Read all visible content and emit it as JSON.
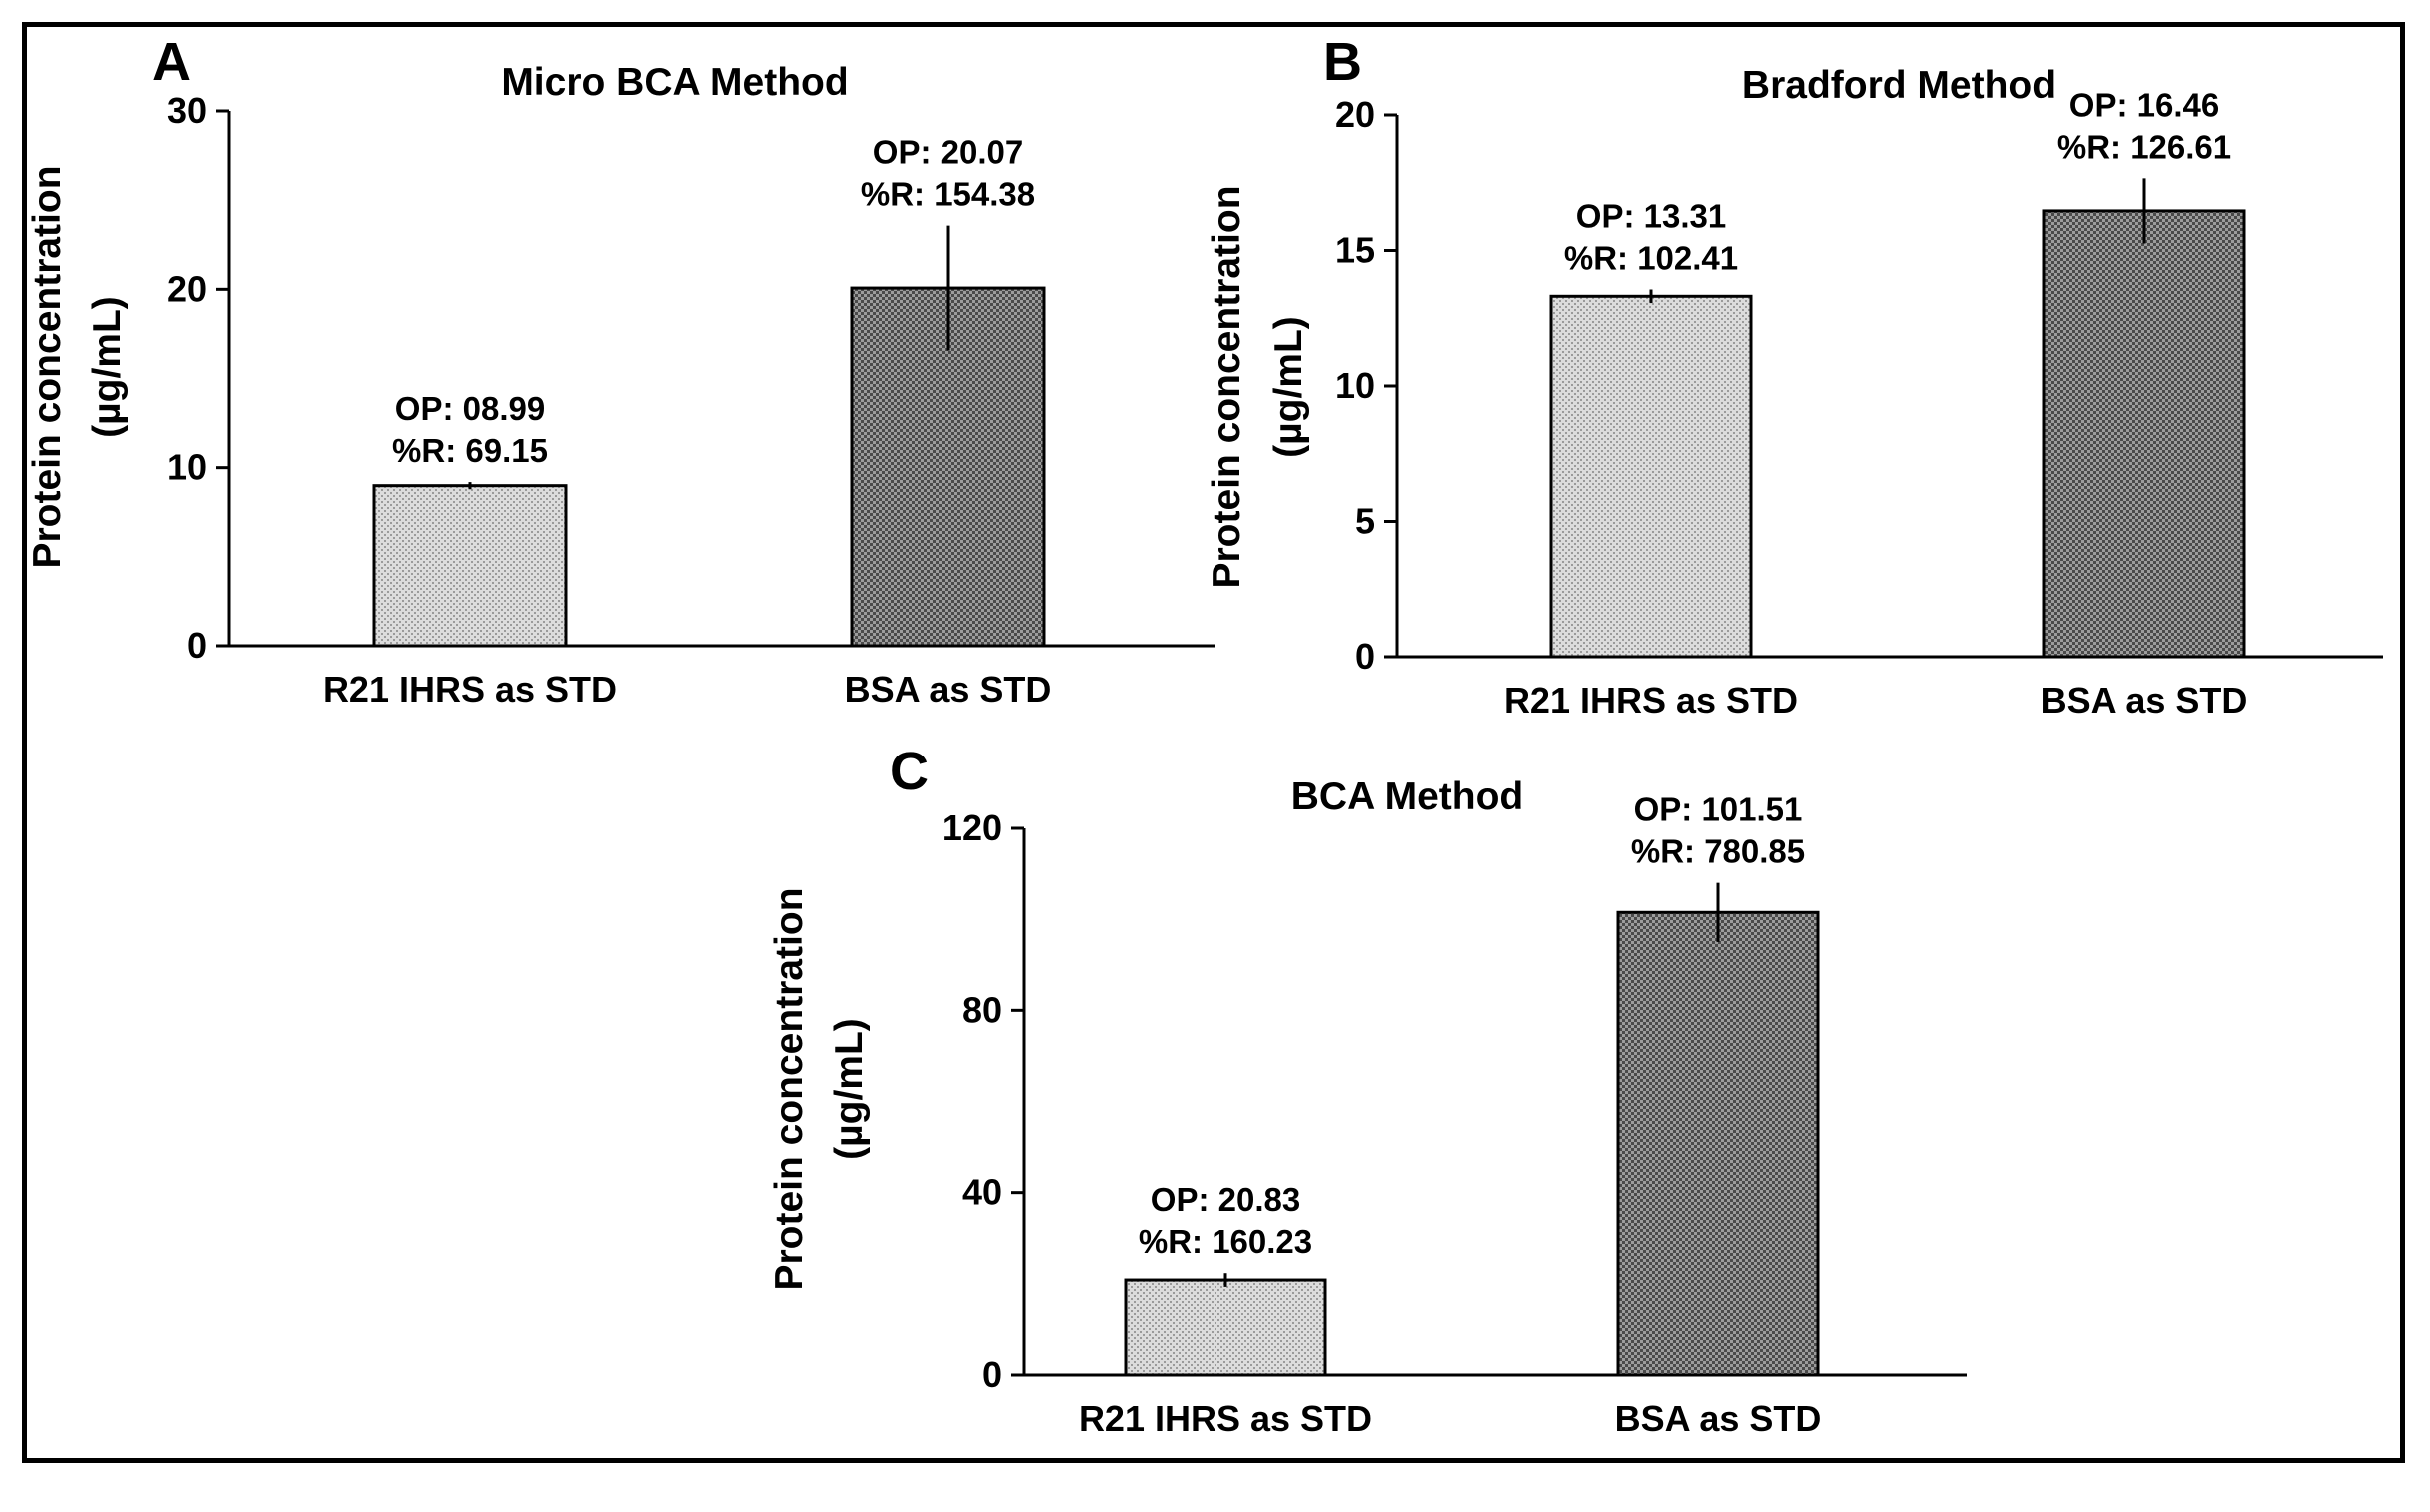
{
  "chart_data": [
    {
      "panel": "A",
      "type": "bar",
      "title": "Micro BCA Method",
      "ylabel_line1": "Protein concentration",
      "ylabel_line2": "(µg/mL)",
      "xlabel": "",
      "ylim": [
        0,
        30
      ],
      "yticks": [
        0,
        10,
        20,
        30
      ],
      "categories": [
        "R21 IHRS as STD",
        "BSA as STD"
      ],
      "values": [
        8.99,
        20.07
      ],
      "errors": [
        0.2,
        3.5
      ],
      "patterns": [
        "light",
        "dark"
      ],
      "annotations": [
        [
          "OP: 08.99",
          "%R: 69.15"
        ],
        [
          "OP: 20.07",
          "%R: 154.38"
        ]
      ]
    },
    {
      "panel": "B",
      "type": "bar",
      "title": "Bradford Method",
      "ylabel_line1": "Protein concentration",
      "ylabel_line2": "(µg/mL)",
      "xlabel": "",
      "ylim": [
        0,
        20
      ],
      "yticks": [
        0,
        5,
        10,
        15,
        20
      ],
      "categories": [
        "R21 IHRS as STD",
        "BSA as STD"
      ],
      "values": [
        13.31,
        16.46
      ],
      "errors": [
        0.25,
        1.2
      ],
      "patterns": [
        "light",
        "dark"
      ],
      "annotations": [
        [
          "OP: 13.31",
          "%R: 102.41"
        ],
        [
          "OP: 16.46",
          "%R: 126.61"
        ]
      ]
    },
    {
      "panel": "C",
      "type": "bar",
      "title": "BCA Method",
      "ylabel_line1": "Protein concentration",
      "ylabel_line2": "(µg/mL)",
      "xlabel": "",
      "ylim": [
        0,
        120
      ],
      "yticks": [
        0,
        40,
        80,
        120
      ],
      "categories": [
        "R21 IHRS as STD",
        "BSA as STD"
      ],
      "values": [
        20.83,
        101.51
      ],
      "errors": [
        1.5,
        6.5
      ],
      "patterns": [
        "light",
        "dark"
      ],
      "annotations": [
        [
          "OP: 20.83",
          "%R: 160.23"
        ],
        [
          "OP: 101.51",
          "%R: 780.85"
        ]
      ]
    }
  ]
}
